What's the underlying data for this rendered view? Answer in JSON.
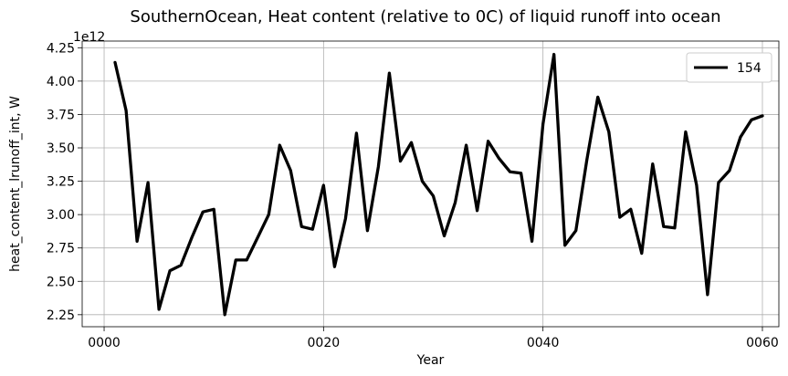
{
  "chart_data": {
    "type": "line",
    "title": "SouthernOcean, Heat content (relative to 0C) of liquid runoff into ocean",
    "xlabel": "Year",
    "ylabel": "heat_content_lrunoff_int, W",
    "y_offset_label": "1e12",
    "x_ticks": [
      {
        "value": 0,
        "label": "0000"
      },
      {
        "value": 20,
        "label": "0020"
      },
      {
        "value": 40,
        "label": "0040"
      },
      {
        "value": 60,
        "label": "0060"
      }
    ],
    "y_ticks": [
      {
        "value": 2.25,
        "label": "2.25"
      },
      {
        "value": 2.5,
        "label": "2.50"
      },
      {
        "value": 2.75,
        "label": "2.75"
      },
      {
        "value": 3.0,
        "label": "3.00"
      },
      {
        "value": 3.25,
        "label": "3.25"
      },
      {
        "value": 3.5,
        "label": "3.50"
      },
      {
        "value": 3.75,
        "label": "3.75"
      },
      {
        "value": 4.0,
        "label": "4.00"
      },
      {
        "value": 4.25,
        "label": "4.25"
      }
    ],
    "xlim": [
      -2,
      61.5
    ],
    "ylim": [
      2.16,
      4.3
    ],
    "grid": true,
    "legend_position": "top-right",
    "series": [
      {
        "name": "154",
        "color": "#000000",
        "x": [
          1,
          2,
          3,
          4,
          5,
          6,
          7,
          8,
          9,
          10,
          11,
          12,
          13,
          14,
          15,
          16,
          17,
          18,
          19,
          20,
          21,
          22,
          23,
          24,
          25,
          26,
          27,
          28,
          29,
          30,
          31,
          32,
          33,
          34,
          35,
          36,
          37,
          38,
          39,
          40,
          41,
          42,
          43,
          44,
          45,
          46,
          47,
          48,
          49,
          50,
          51,
          52,
          53,
          54,
          55,
          56,
          57,
          58,
          59,
          60
        ],
        "values": [
          4.14,
          3.78,
          2.8,
          3.24,
          2.29,
          2.58,
          2.62,
          2.83,
          3.02,
          3.04,
          2.25,
          2.66,
          2.66,
          2.83,
          3.0,
          3.52,
          3.33,
          2.91,
          2.89,
          3.22,
          2.61,
          2.97,
          3.61,
          2.88,
          3.36,
          4.06,
          3.4,
          3.54,
          3.25,
          3.14,
          2.84,
          3.09,
          3.52,
          3.03,
          3.55,
          3.42,
          3.32,
          3.31,
          2.8,
          3.68,
          4.2,
          2.77,
          2.88,
          3.41,
          3.88,
          3.62,
          2.98,
          3.04,
          2.71,
          3.38,
          2.91,
          2.9,
          3.62,
          3.22,
          2.4,
          3.24,
          3.33,
          3.58,
          3.71,
          3.74
        ]
      }
    ]
  }
}
